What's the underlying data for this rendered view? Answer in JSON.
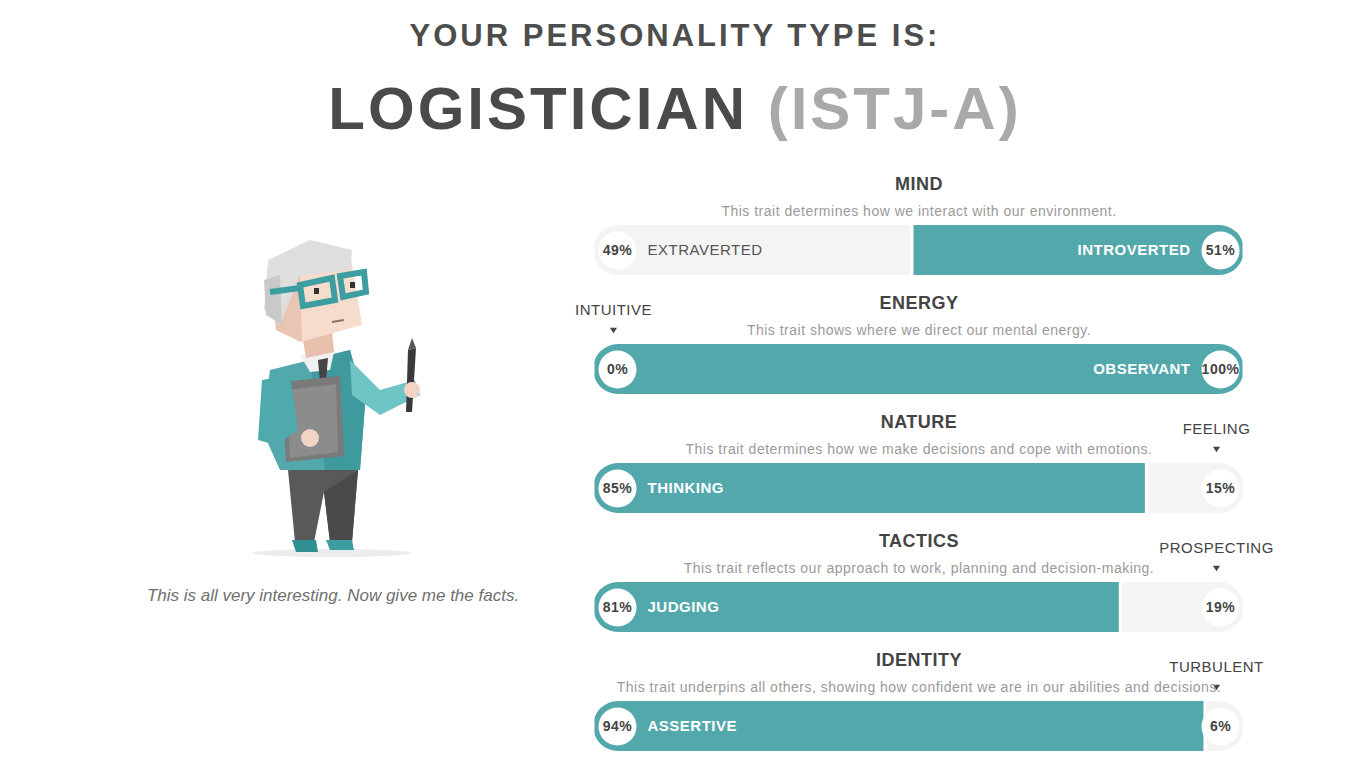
{
  "header": {
    "title": "YOUR PERSONALITY TYPE IS:",
    "type_name": "LOGISTICIAN",
    "type_code": "(ISTJ-A)"
  },
  "caption": "This is all very interesting. Now give me the facts.",
  "chart_data": [
    {
      "type": "bar",
      "orientation": "horizontal",
      "stacked": true,
      "data_labels": true,
      "tick_labels": false,
      "title": "MIND",
      "subtitle": "This trait determines how we interact with our environment.",
      "xlim": [
        0,
        100
      ],
      "series": [
        {
          "name": "EXTRAVERTED",
          "color": "#f4f4f4",
          "values": [
            49
          ],
          "value_labels": [
            "49%"
          ]
        },
        {
          "name": "INTROVERTED",
          "color": "#53a8ab",
          "values": [
            51
          ],
          "value_labels": [
            "51%"
          ]
        }
      ]
    },
    {
      "type": "bar",
      "orientation": "horizontal",
      "stacked": true,
      "data_labels": true,
      "tick_labels": false,
      "title": "ENERGY",
      "subtitle": "This trait shows where we direct our mental energy.",
      "xlim": [
        0,
        100
      ],
      "series": [
        {
          "name": "INTUITIVE",
          "color": "#f4f4f4",
          "values": [
            0
          ],
          "value_labels": [
            "0%"
          ]
        },
        {
          "name": "OBSERVANT",
          "color": "#53a8ab",
          "values": [
            100
          ],
          "value_labels": [
            "100%"
          ]
        }
      ]
    },
    {
      "type": "bar",
      "orientation": "horizontal",
      "stacked": true,
      "data_labels": true,
      "tick_labels": false,
      "title": "NATURE",
      "subtitle": "This trait determines how we make decisions and cope with emotions.",
      "xlim": [
        0,
        100
      ],
      "series": [
        {
          "name": "THINKING",
          "color": "#53a8ab",
          "values": [
            85
          ],
          "value_labels": [
            "85%"
          ]
        },
        {
          "name": "FEELING",
          "color": "#f4f4f4",
          "values": [
            15
          ],
          "value_labels": [
            "15%"
          ]
        }
      ]
    },
    {
      "type": "bar",
      "orientation": "horizontal",
      "stacked": true,
      "data_labels": true,
      "tick_labels": false,
      "title": "TACTICS",
      "subtitle": "This trait reflects our approach to work, planning and decision-making.",
      "xlim": [
        0,
        100
      ],
      "series": [
        {
          "name": "JUDGING",
          "color": "#53a8ab",
          "values": [
            81
          ],
          "value_labels": [
            "81%"
          ]
        },
        {
          "name": "PROSPECTING",
          "color": "#f4f4f4",
          "values": [
            19
          ],
          "value_labels": [
            "19%"
          ]
        }
      ]
    },
    {
      "type": "bar",
      "orientation": "horizontal",
      "stacked": true,
      "data_labels": true,
      "tick_labels": false,
      "title": "IDENTITY",
      "subtitle": "This trait underpins all others, showing how confident we are in our abilities and decisions.",
      "xlim": [
        0,
        100
      ],
      "series": [
        {
          "name": "ASSERTIVE",
          "color": "#53a8ab",
          "values": [
            94
          ],
          "value_labels": [
            "94%"
          ]
        },
        {
          "name": "TURBULENT",
          "color": "#f4f4f4",
          "values": [
            6
          ],
          "value_labels": [
            "6%"
          ]
        }
      ]
    }
  ]
}
